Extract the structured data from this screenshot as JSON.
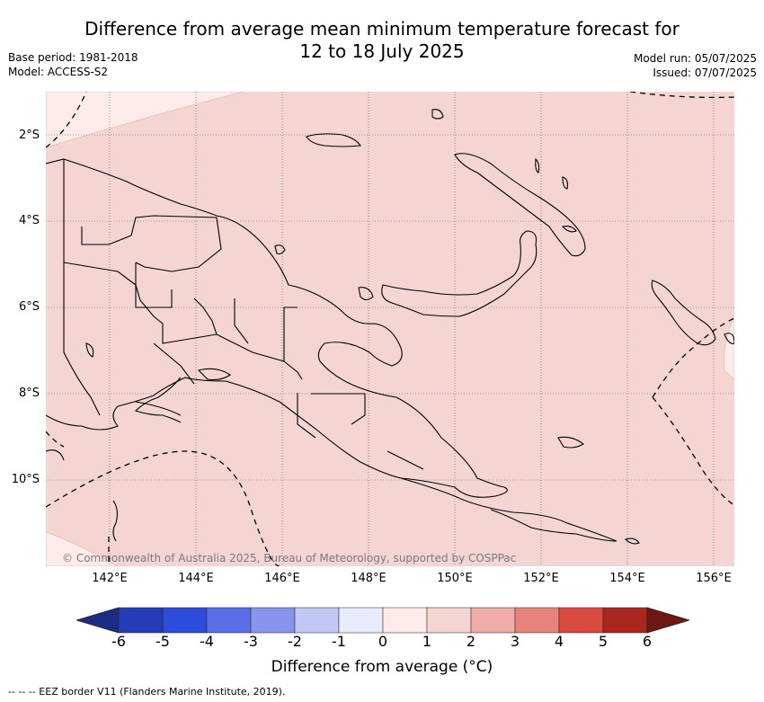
{
  "header": {
    "title_line1": "Difference from average mean minimum temperature forecast for",
    "title_line2": "12 to 18 July 2025",
    "base_period": "Base period: 1981-2018",
    "model": "Model: ACCESS-S2",
    "model_run": "Model run: 05/07/2025",
    "issued": "Issued: 07/07/2025"
  },
  "map": {
    "region": "Papua New Guinea",
    "background_color": "#f5d5d2",
    "light_zone_color": "#fcebe8",
    "lat_ticks": [
      "2°S",
      "4°S",
      "6°S",
      "8°S",
      "10°S"
    ],
    "lon_ticks": [
      "142°E",
      "144°E",
      "146°E",
      "148°E",
      "150°E",
      "152°E",
      "154°E",
      "156°E"
    ],
    "copyright": "© Commonwealth of Australia 2025, Bureau of Meteorology, supported by COSPPac"
  },
  "colorbar": {
    "label": "Difference from average (°C)",
    "ticks": [
      "-6",
      "-5",
      "-4",
      "-3",
      "-2",
      "-1",
      "0",
      "1",
      "2",
      "3",
      "4",
      "5",
      "6"
    ],
    "colors": [
      "#1c2c85",
      "#243db6",
      "#2d4bdd",
      "#5a6ee5",
      "#8796ec",
      "#c1c8f5",
      "#e8ebfb",
      "#fcebe8",
      "#f5d5d2",
      "#efada7",
      "#e7837a",
      "#d84a3f",
      "#aa2720",
      "#6e1714"
    ]
  },
  "footer": {
    "legend": "-- -- -- EEZ border V11 (Flanders Marine Institute, 2019)."
  }
}
